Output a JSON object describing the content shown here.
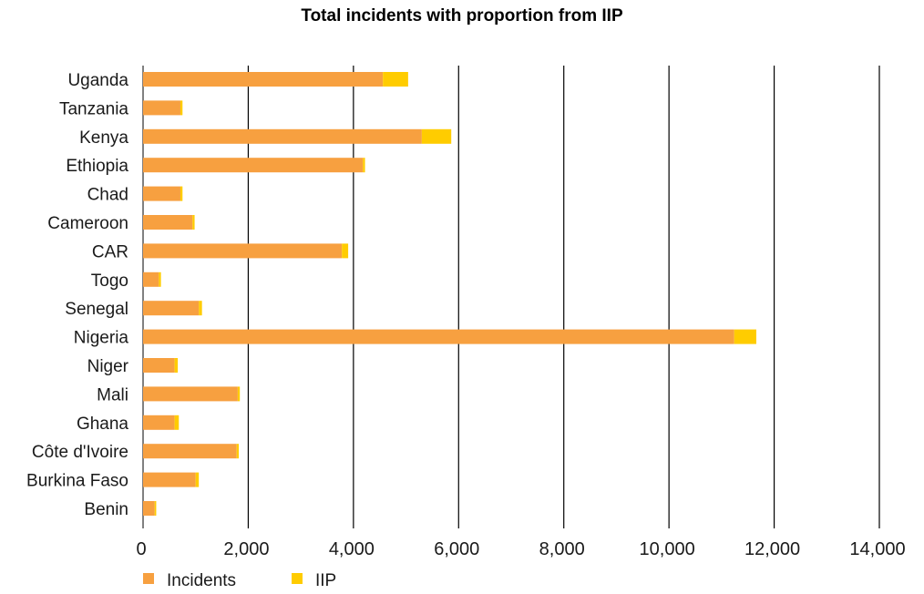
{
  "chart_data": {
    "type": "bar",
    "orientation": "horizontal",
    "stacked": true,
    "title": "Total incidents with proportion from IIP",
    "categories": [
      "Uganda",
      "Tanzania",
      "Kenya",
      "Ethiopia",
      "Chad",
      "Cameroon",
      "CAR",
      "Togo",
      "Senegal",
      "Nigeria",
      "Niger",
      "Mali",
      "Ghana",
      "Côte d'Ivoire",
      "Burkina Faso",
      "Benin"
    ],
    "series": [
      {
        "name": "Incidents",
        "color": "#F7A040",
        "values": [
          4560,
          710,
          5300,
          4180,
          710,
          940,
          3780,
          300,
          1060,
          11240,
          600,
          1800,
          600,
          1780,
          1000,
          220
        ]
      },
      {
        "name": "IIP",
        "color": "#FFCC00",
        "values": [
          480,
          40,
          560,
          40,
          40,
          40,
          120,
          40,
          60,
          420,
          60,
          40,
          80,
          40,
          60,
          30
        ]
      }
    ],
    "xlim": [
      0,
      14000
    ],
    "xticks": [
      0,
      2000,
      4000,
      6000,
      8000,
      10000,
      12000,
      14000
    ],
    "xtick_labels": [
      "0",
      "2,000",
      "4,000",
      "6,000",
      "8,000",
      "10,000",
      "12,000",
      "14,000"
    ],
    "grid": "vertical",
    "legend": "bottom-left",
    "xlabel": "",
    "ylabel": ""
  }
}
